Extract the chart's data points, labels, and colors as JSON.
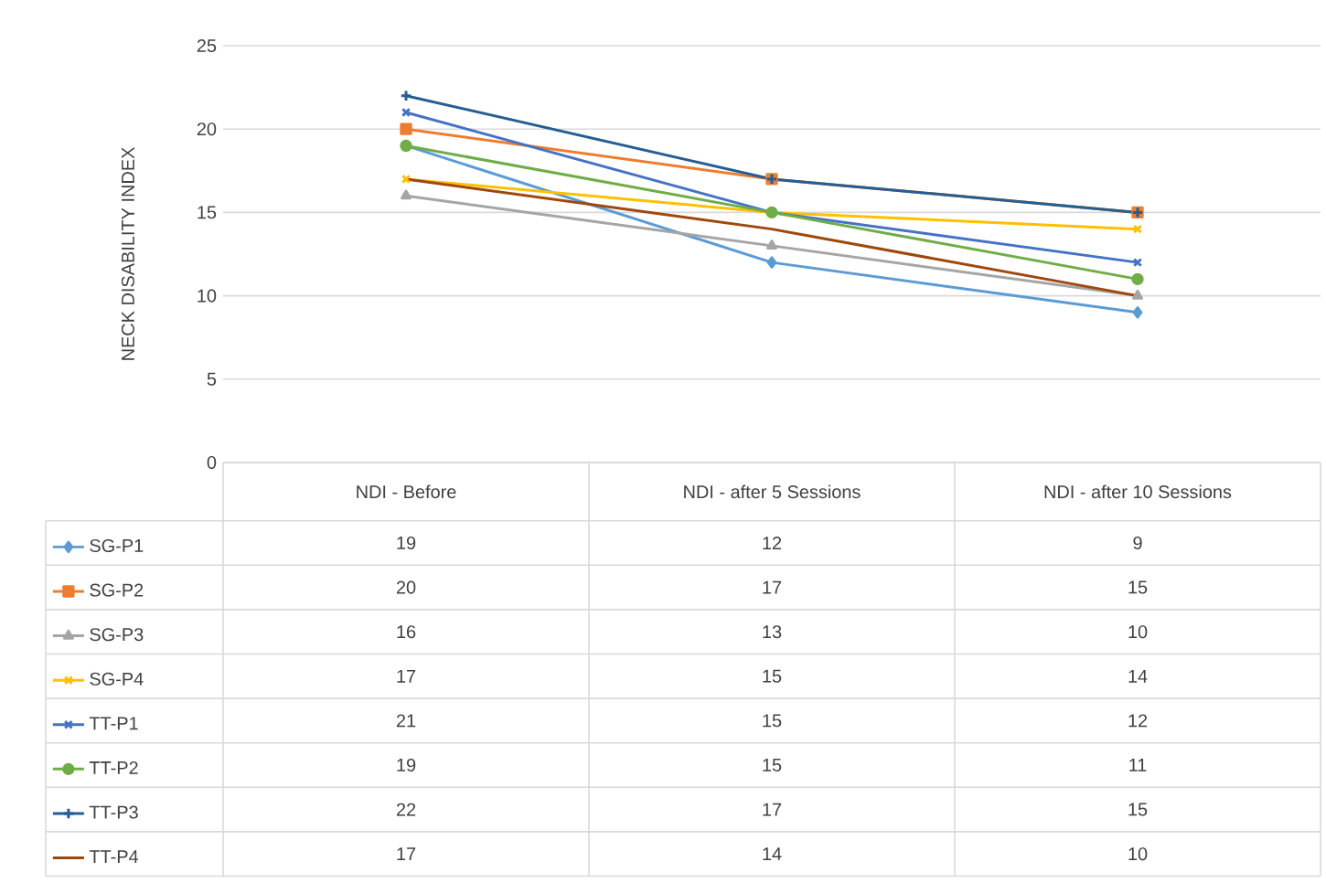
{
  "chart_data": {
    "type": "line",
    "ylabel": "NECK DISABILITY INDEX",
    "categories": [
      "NDI - Before",
      "NDI - after 5 Sessions",
      "NDI - after 10 Sessions"
    ],
    "ylim": [
      0,
      25
    ],
    "yticks": [
      0,
      5,
      10,
      15,
      20,
      25
    ],
    "grid": "y",
    "legend": "bottom",
    "data_labels": true,
    "line_style": "solid",
    "series": [
      {
        "name": "SG-P1",
        "color": "#5b9bd5",
        "marker": "diamond",
        "values": [
          19,
          12,
          9
        ]
      },
      {
        "name": "SG-P2",
        "color": "#ed7d31",
        "marker": "square",
        "values": [
          20,
          17,
          15
        ]
      },
      {
        "name": "SG-P3",
        "color": "#a5a5a5",
        "marker": "triangle",
        "values": [
          16,
          13,
          10
        ]
      },
      {
        "name": "SG-P4",
        "color": "#ffc000",
        "marker": "cross",
        "values": [
          17,
          15,
          14
        ]
      },
      {
        "name": "TT-P1",
        "color": "#4472c4",
        "marker": "cross",
        "values": [
          21,
          15,
          12
        ]
      },
      {
        "name": "TT-P2",
        "color": "#70ad47",
        "marker": "circle",
        "values": [
          19,
          15,
          11
        ]
      },
      {
        "name": "TT-P3",
        "color": "#255e91",
        "marker": "plus",
        "values": [
          22,
          17,
          15
        ]
      },
      {
        "name": "TT-P4",
        "color": "#9e480e",
        "marker": "none",
        "values": [
          17,
          14,
          10
        ]
      }
    ]
  }
}
